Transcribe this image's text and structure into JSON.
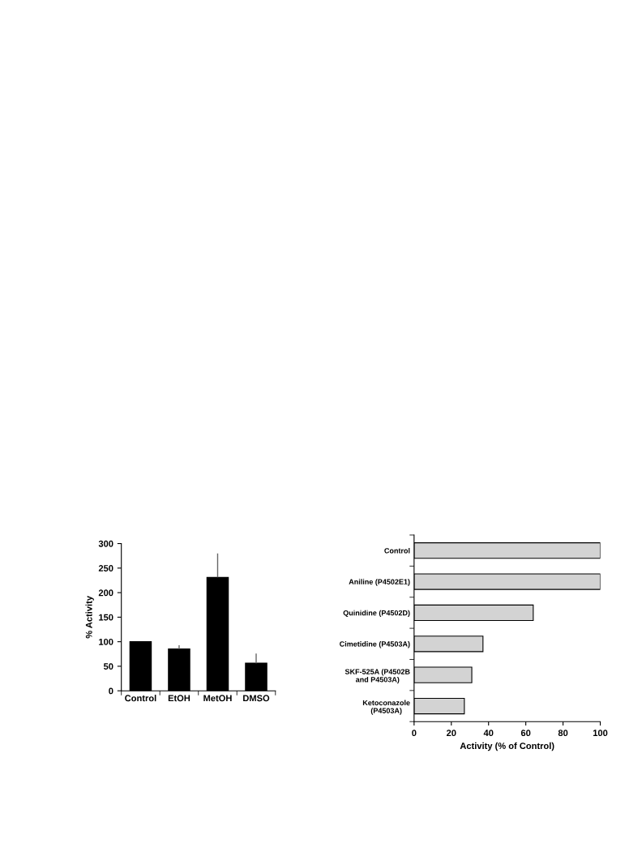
{
  "chart_data": [
    {
      "type": "bar",
      "ylabel": "% Activity",
      "categories": [
        "Control",
        "EtOH",
        "MetOH",
        "DMSO"
      ],
      "series": [
        {
          "color": "#000000",
          "values": [
            100,
            85,
            231,
            56
          ],
          "errors": [
            null,
            [
              85,
              93
            ],
            [
              231,
              280
            ],
            [
              56,
              76
            ]
          ]
        }
      ],
      "ylim": [
        0,
        300
      ],
      "yticks": [
        0,
        50,
        100,
        150,
        200,
        250,
        300
      ],
      "grid": false,
      "legend": false
    },
    {
      "type": "bar",
      "orientation": "horizontal",
      "xlabel": "Activity (% of Control)",
      "categories": [
        "Control",
        "Aniline (P4502E1)",
        "Quinidine (P4502D)",
        "Cimetidine (P4503A)",
        "SKF-525A (P4502B\nand P4503A)",
        "Ketoconazole\n(P4503A)"
      ],
      "series": [
        {
          "color": "#d3d3d3",
          "values": [
            100,
            100,
            64,
            37,
            31,
            27
          ]
        }
      ],
      "xlim": [
        0,
        100
      ],
      "xticks": [
        0,
        20,
        40,
        60,
        80,
        100
      ],
      "grid": false,
      "legend": false
    }
  ]
}
